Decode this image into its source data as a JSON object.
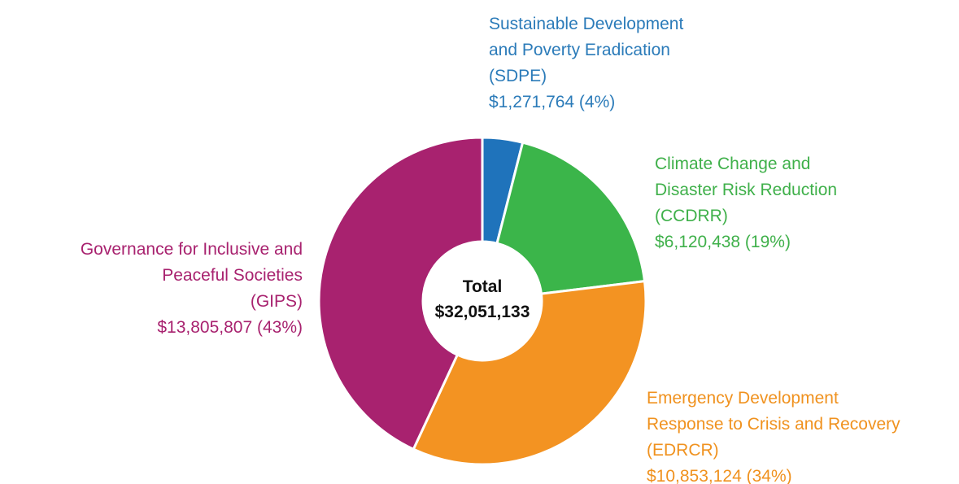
{
  "chart_data": {
    "type": "donut",
    "categories": [
      "Sustainable Development\nand Poverty Eradication\n(SDPE)",
      "Climate Change and\nDisaster Risk Reduction\n(CCDRR)",
      "Emergency Development\nResponse to Crisis and Recovery\n(EDRCR)",
      "Governance for Inclusive and\nPeaceful Societies\n(GIPS)"
    ],
    "values": [
      1271764,
      6120438,
      10853124,
      13805807
    ],
    "value_labels": [
      "$1,271,764 (4%)",
      "$6,120,438 (19%)",
      "$10,853,124 (34%)",
      "$13,805,807 (43%)"
    ],
    "colors": [
      "#1f73bb",
      "#3bb54a",
      "#f39322",
      "#a8226f"
    ],
    "label_colors": [
      "#2b7bb9",
      "#3fb04a",
      "#f0921f",
      "#a8226f"
    ],
    "center_title": "Total",
    "center_value": "$32,051,133"
  }
}
